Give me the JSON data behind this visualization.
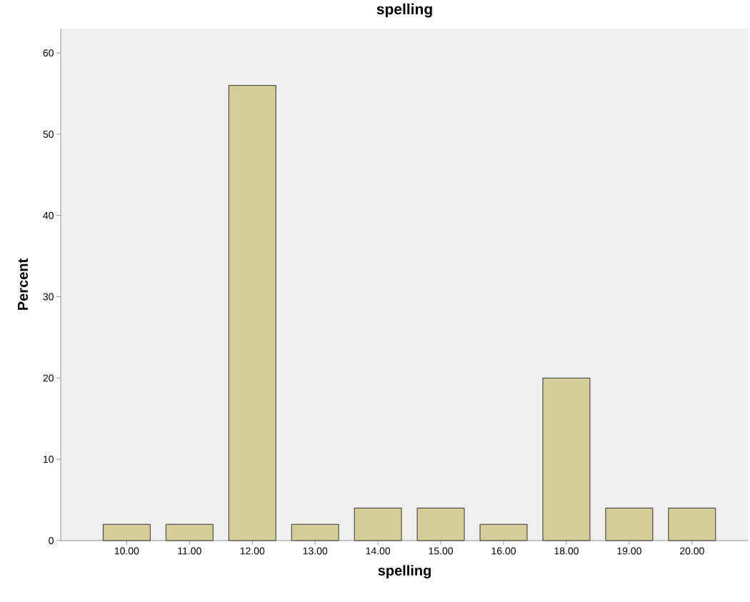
{
  "chart_data": {
    "type": "bar",
    "title": "spelling",
    "xlabel": "spelling",
    "ylabel": "Percent",
    "categories": [
      "10.00",
      "11.00",
      "12.00",
      "13.00",
      "14.00",
      "15.00",
      "16.00",
      "18.00",
      "19.00",
      "20.00"
    ],
    "values": [
      2,
      2,
      56,
      2,
      4,
      4,
      2,
      20,
      4,
      4
    ],
    "color": "#d3ce97",
    "ylim": [
      0,
      63
    ],
    "yticks": [
      0,
      10,
      20,
      30,
      40,
      50,
      60
    ],
    "grid": false
  }
}
